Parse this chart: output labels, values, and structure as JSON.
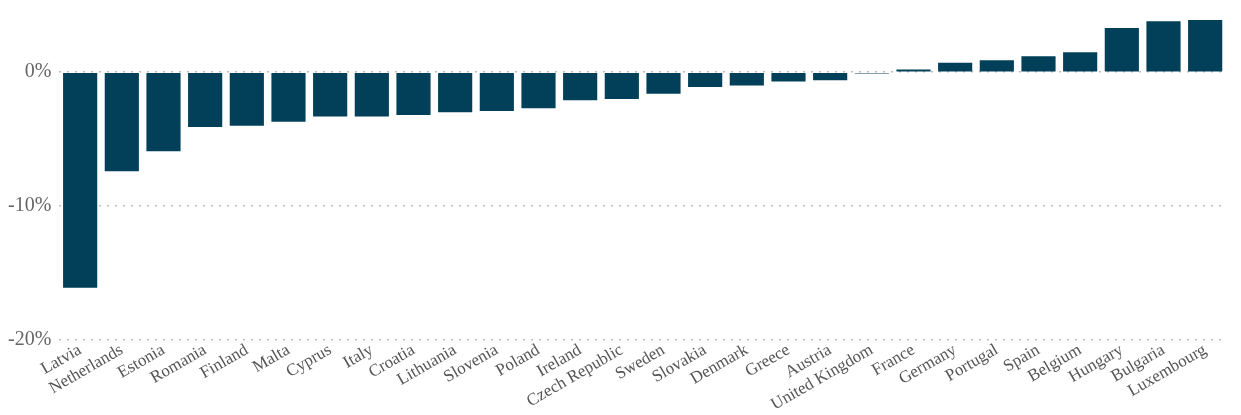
{
  "chart_data": {
    "type": "bar",
    "categories": [
      "Latvia",
      "Netherlands",
      "Estonia",
      "Romania",
      "Finland",
      "Malta",
      "Cyprus",
      "Italy",
      "Croatia",
      "Lithuania",
      "Slovenia",
      "Poland",
      "Ireland",
      "Czech Republic",
      "Sweden",
      "Slovakia",
      "Denmark",
      "Greece",
      "Austria",
      "United Kingdom",
      "France",
      "Germany",
      "Portugal",
      "Spain",
      "Belgium",
      "Hungary",
      "Bulgaria",
      "Luxembourg"
    ],
    "values": [
      -16.1,
      -7.4,
      -5.9,
      -4.1,
      -4.0,
      -3.7,
      -3.3,
      -3.3,
      -3.2,
      -3.0,
      -2.9,
      -2.7,
      -2.1,
      -2.0,
      -1.6,
      -1.1,
      -1.0,
      -0.7,
      -0.6,
      -0.1,
      0.2,
      0.7,
      0.9,
      1.2,
      1.5,
      3.3,
      3.8,
      3.9
    ],
    "color": "#024059",
    "ylim": [
      -20,
      3.9
    ],
    "yticks": [
      {
        "value": -20,
        "label": "-20%"
      },
      {
        "value": -10,
        "label": "-10%"
      },
      {
        "value": 0,
        "label": "0%"
      }
    ],
    "grid": "y"
  }
}
